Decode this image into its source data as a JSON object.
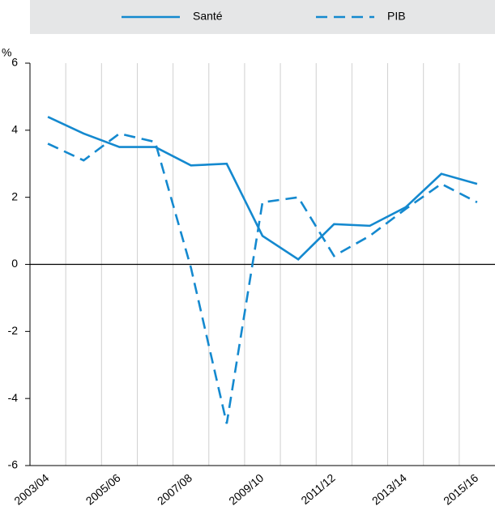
{
  "chart_data": {
    "type": "line",
    "y_label": "%",
    "categories": [
      "2003/04",
      null,
      "2005/06",
      null,
      "2007/08",
      null,
      "2009/10",
      null,
      "2011/12",
      null,
      "2013/14",
      null,
      "2015/16"
    ],
    "series": [
      {
        "name": "Santé",
        "color": "#1489cf",
        "dash": "solid",
        "values": [
          4.4,
          3.9,
          3.5,
          3.5,
          2.95,
          3.0,
          0.85,
          0.15,
          1.2,
          1.15,
          1.7,
          2.7,
          2.4
        ]
      },
      {
        "name": "PIB",
        "color": "#1489cf",
        "dash": "dashed",
        "values": [
          3.6,
          3.1,
          3.9,
          3.65,
          -0.1,
          -4.75,
          1.85,
          2.0,
          0.25,
          0.85,
          1.65,
          2.4,
          1.85
        ]
      }
    ],
    "ylim": [
      -6,
      6
    ],
    "yticks": [
      -6,
      -4,
      -2,
      0,
      2,
      4,
      6
    ],
    "legend": "top"
  }
}
